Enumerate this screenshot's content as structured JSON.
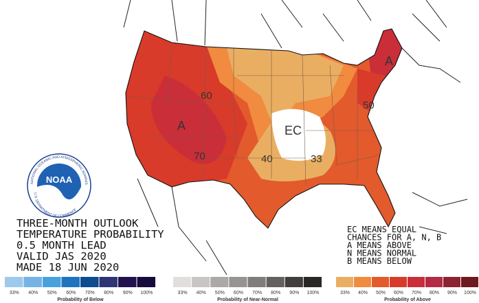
{
  "outlook_text": [
    "THREE-MONTH OUTLOOK",
    "TEMPERATURE PROBABILITY",
    "0.5 MONTH LEAD",
    "VALID JAS 2020",
    "MADE 18 JUN 2020"
  ],
  "key_text": [
    "EC MEANS EQUAL",
    "CHANCES FOR A, N, B",
    "A MEANS ABOVE",
    "N MEANS NORMAL",
    "B MEANS BELOW"
  ],
  "map_labels": [
    "60",
    "A",
    "70",
    "EC",
    "40",
    "33",
    "A",
    "50"
  ],
  "logo": {
    "name": "NOAA",
    "ring_top": "NATIONAL OCEANIC AND ATMOSPHERIC ADMINISTRATION",
    "ring_bottom": "U.S. DEPARTMENT OF COMMERCE"
  },
  "legend": [
    {
      "title": "Probability of Below",
      "labels": [
        "33%",
        "40%",
        "50%",
        "60%",
        "70%",
        "80%",
        "90%",
        "100%"
      ],
      "colors": [
        "#9fc9ec",
        "#74b3e4",
        "#48a1dd",
        "#1e74be",
        "#0d4c8f",
        "#2f3474",
        "#21124f",
        "#170a3c"
      ]
    },
    {
      "title": "Probability of Near-Normal",
      "labels": [
        "33%",
        "40%",
        "50%",
        "60%",
        "70%",
        "80%",
        "90%",
        "100%"
      ],
      "colors": [
        "#e2dede",
        "#c9c5c5",
        "#aca8a8",
        "#979393",
        "#807c7c",
        "#646060",
        "#423e3e",
        "#2a2727"
      ]
    },
    {
      "title": "Probability of Above",
      "labels": [
        "33%",
        "40%",
        "50%",
        "60%",
        "70%",
        "80%",
        "90%",
        "100%"
      ],
      "colors": [
        "#eaae62",
        "#f08b3f",
        "#e35a2c",
        "#d83b2a",
        "#c92e39",
        "#b42a46",
        "#8c2431",
        "#6e1a20"
      ]
    }
  ]
}
